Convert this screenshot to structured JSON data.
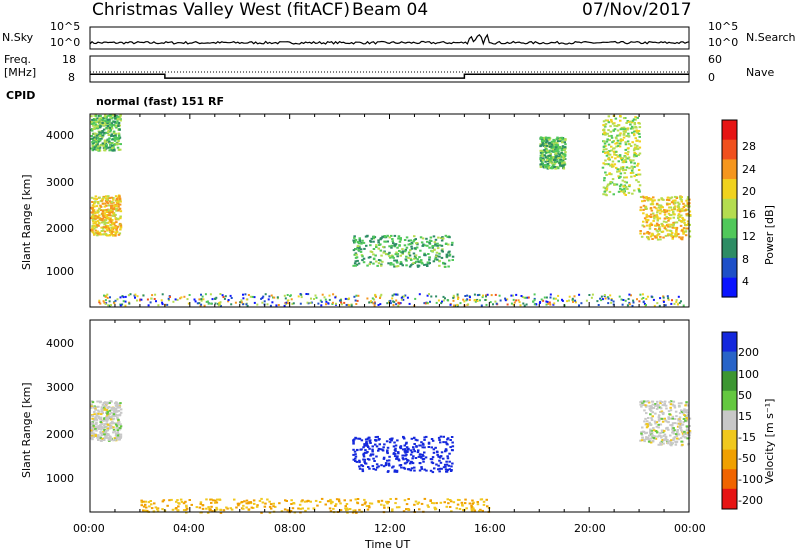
{
  "header": {
    "station": "Christmas Valley West (fitACF)",
    "beam": "Beam 04",
    "date": "07/Nov/2017"
  },
  "panels": {
    "nsky": {
      "label": "N.Sky",
      "ticks_left": [
        "10^5",
        "10^0"
      ],
      "ticks_right": [
        "10^5",
        "10^0"
      ],
      "right_label": "N.Search"
    },
    "freq": {
      "label_line1": "Freq.",
      "label_line2": "[MHz]",
      "ticks_left": [
        "18",
        "8"
      ],
      "ticks_right": [
        "60",
        "0"
      ],
      "right_label": "Nave"
    },
    "cpid": {
      "label": "CPID",
      "value": "normal (fast) 151 RF"
    },
    "power": {
      "ylabel": "Slant Range [km]",
      "yticks": [
        "4000",
        "3000",
        "2000",
        "1000"
      ],
      "colorbar_label": "Power [dB]",
      "colorbar_ticks": [
        "28",
        "24",
        "20",
        "16",
        "12",
        "8",
        "4"
      ],
      "colors": [
        "#0a14ff",
        "#1e50c8",
        "#2d8c64",
        "#50c85a",
        "#b4dc50",
        "#f0d21e",
        "#f5961e",
        "#f0501e",
        "#e61414"
      ]
    },
    "velocity": {
      "ylabel": "Slant Range [km]",
      "yticks": [
        "4000",
        "3000",
        "2000",
        "1000"
      ],
      "colorbar_label": "Velocity [m s⁻¹]",
      "colorbar_ticks": [
        "200",
        "100",
        "50",
        "15",
        "-15",
        "-50",
        "-100",
        "-200"
      ],
      "colors": [
        "#1428dc",
        "#2864c8",
        "#3c9632",
        "#64c840",
        "#c8c8c8",
        "#f0c81e",
        "#f0a000",
        "#f06400",
        "#e61414"
      ]
    }
  },
  "xaxis": {
    "label": "Time UT",
    "ticks": [
      "00:00",
      "04:00",
      "08:00",
      "12:00",
      "16:00",
      "20:00",
      "00:00"
    ]
  },
  "chart_data": {
    "type": "heatmap",
    "title": "Christmas Valley West (fitACF) Beam 04 07/Nov/2017",
    "xlabel": "Time UT",
    "ylabel": "Slant Range [km]",
    "x_range_hours": [
      0,
      24
    ],
    "y_range_km": [
      180,
      4500
    ],
    "frequency_MHz": [
      {
        "start_h": 0,
        "end_h": 3,
        "value": 11
      },
      {
        "start_h": 3,
        "end_h": 15,
        "value": 9.5
      },
      {
        "start_h": 15,
        "end_h": 24,
        "value": 11
      }
    ],
    "power_patches": [
      {
        "t0": 0.0,
        "t1": 1.2,
        "r0": 1800,
        "r1": 2700,
        "dB": 22
      },
      {
        "t0": 0.0,
        "t1": 1.2,
        "r0": 3700,
        "r1": 4500,
        "dB": 14
      },
      {
        "t0": 10.5,
        "t1": 14.5,
        "r0": 1100,
        "r1": 1800,
        "dB": 13
      },
      {
        "t0": 18.0,
        "t1": 19.0,
        "r0": 3300,
        "r1": 4000,
        "dB": 14
      },
      {
        "t0": 20.5,
        "t1": 22.0,
        "r0": 2700,
        "r1": 4500,
        "dB": 18
      },
      {
        "t0": 22.0,
        "t1": 24.0,
        "r0": 1700,
        "r1": 2700,
        "dB": 22
      }
    ],
    "velocity_patches": [
      {
        "t0": 0.0,
        "t1": 1.2,
        "r0": 1800,
        "r1": 2700,
        "v": 0
      },
      {
        "t0": 10.5,
        "t1": 14.5,
        "r0": 1100,
        "r1": 1900,
        "v": 220
      },
      {
        "t0": 22.0,
        "t1": 24.0,
        "r0": 1700,
        "r1": 2700,
        "v": 0
      },
      {
        "t0": 2.0,
        "t1": 16.0,
        "r0": 180,
        "r1": 500,
        "v": -50
      }
    ]
  }
}
